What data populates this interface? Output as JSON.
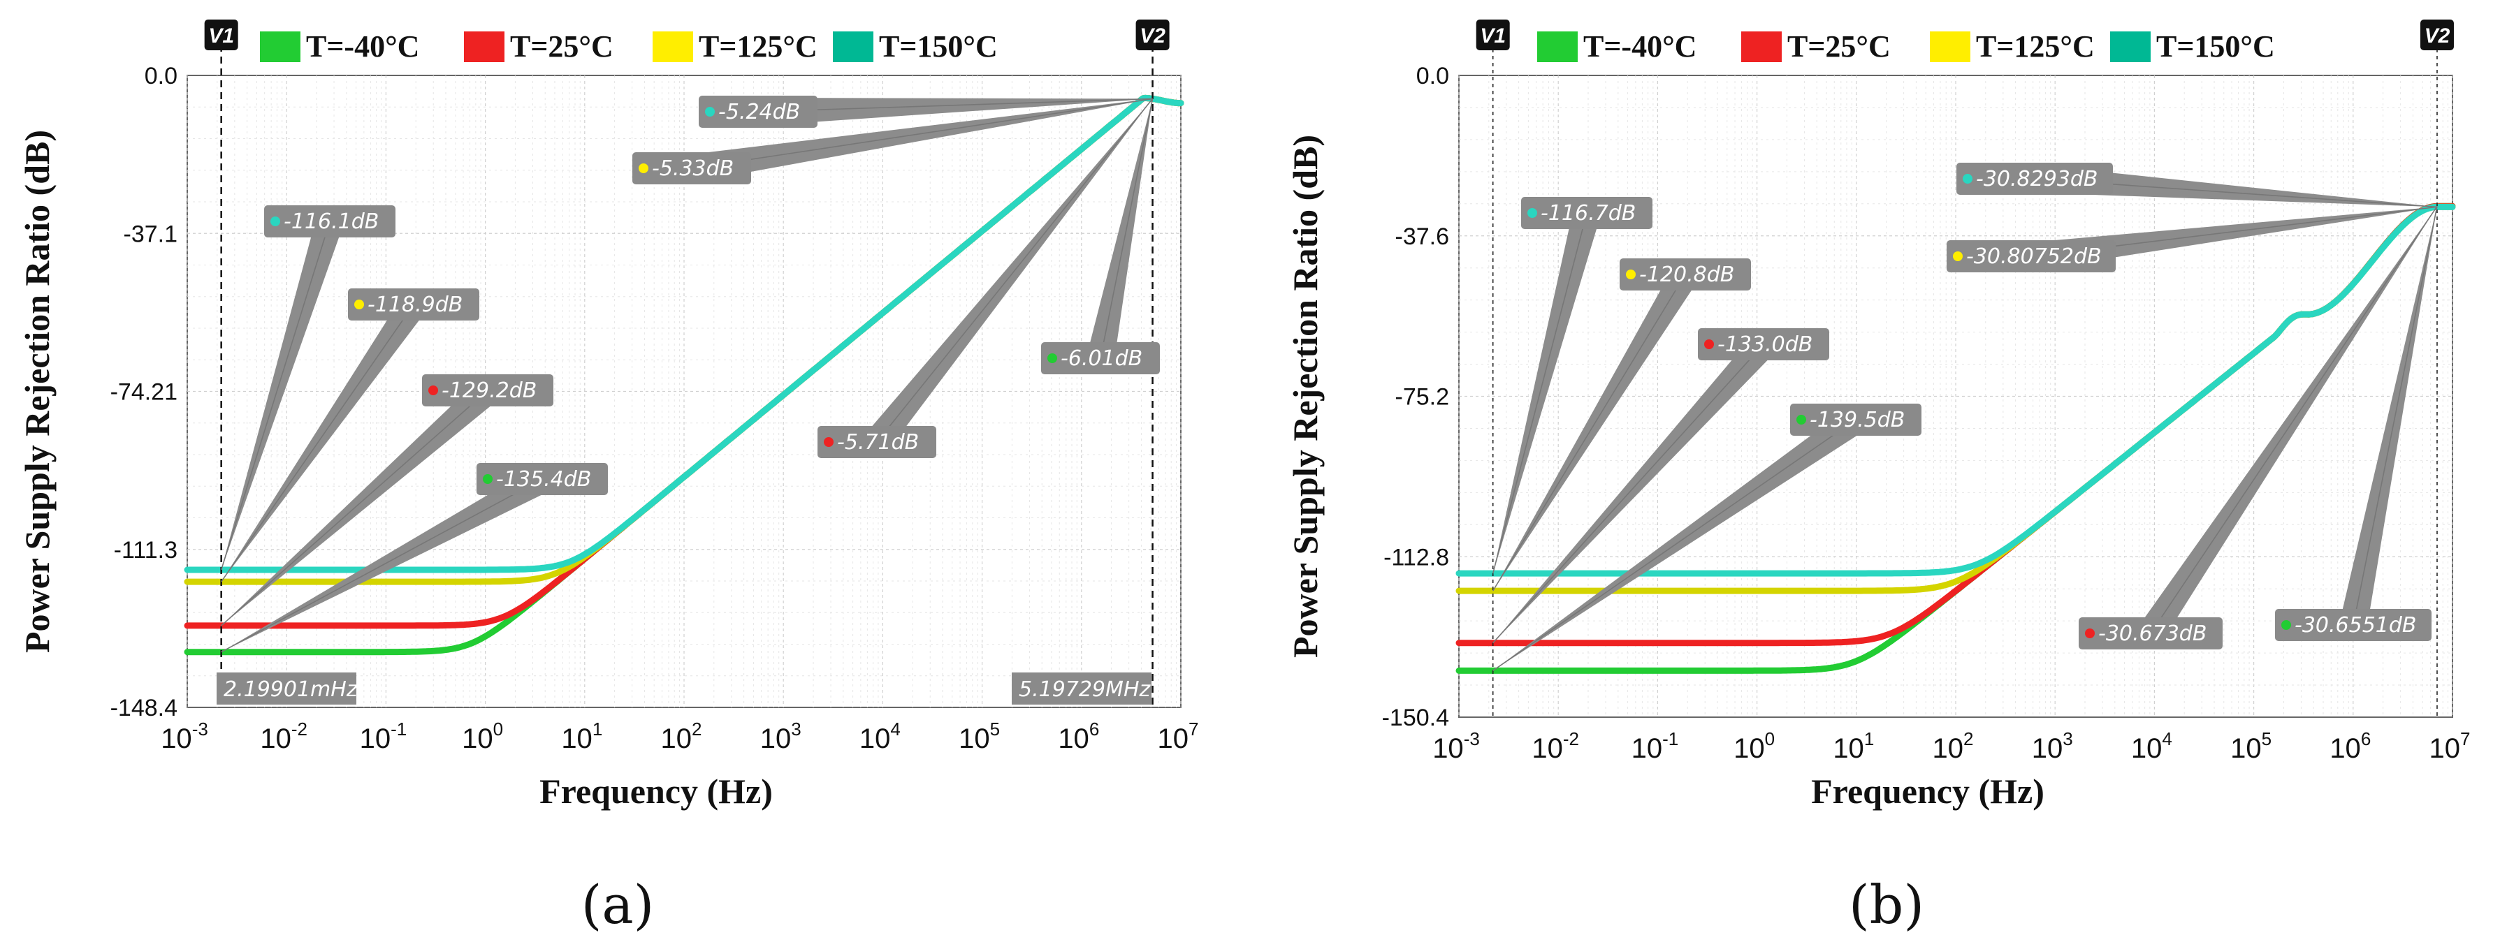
{
  "chart_data": [
    {
      "id": "a",
      "type": "line",
      "xscale": "log",
      "xlabel": "Frequency (Hz)",
      "ylabel": "Power Supply Rejection Ratio (dB)",
      "xlim": [
        0.001,
        10000000
      ],
      "ylim": [
        -148.4,
        0.0
      ],
      "yticks": [
        "0.0",
        "-37.1",
        "-74.21",
        "-111.3",
        "-148.4"
      ],
      "ytick_values": [
        0.0,
        -37.1,
        -74.21,
        -111.3,
        -148.4
      ],
      "x_tick_exponents": [
        -3,
        -2,
        -1,
        0,
        1,
        2,
        3,
        4,
        5,
        6,
        7
      ],
      "grid": true,
      "legend": [
        "T=-40°C",
        "T=25°C",
        "T=125°C",
        "T=150°C"
      ],
      "legend_colors": [
        "#22cc33",
        "#ee2222",
        "#ffee00",
        "#00b894"
      ],
      "series_colors": [
        "#22cc33",
        "#ee2222",
        "#d4d400",
        "#2ad6c0"
      ],
      "curve": {
        "corner_hz": 12,
        "peak_hz": 4200000,
        "peak_db": -5.3,
        "end_db": -6.5
      },
      "series": [
        {
          "name": "T=-40°C",
          "floor_db": -135.4,
          "mid_db": -6.01
        },
        {
          "name": "T=25°C",
          "floor_db": -129.2,
          "mid_db": -5.71
        },
        {
          "name": "T=125°C",
          "floor_db": -118.9,
          "mid_db": -5.33
        },
        {
          "name": "T=150°C",
          "floor_db": -116.1,
          "mid_db": -5.24
        }
      ],
      "cursors": [
        {
          "tag": "V1",
          "x": 0.00219901,
          "readout": "2.19901mHz"
        },
        {
          "tag": "V2",
          "x": 5197290,
          "readout": "5.19729MHz"
        }
      ],
      "annotations": [
        {
          "text": "-116.1dB",
          "series": 3,
          "cursor": 0,
          "value_db": -116.1
        },
        {
          "text": "-118.9dB",
          "series": 2,
          "cursor": 0,
          "value_db": -118.9
        },
        {
          "text": "-129.2dB",
          "series": 1,
          "cursor": 0,
          "value_db": -129.2
        },
        {
          "text": "-135.4dB",
          "series": 0,
          "cursor": 0,
          "value_db": -135.4
        },
        {
          "text": "-5.24dB",
          "series": 3,
          "cursor": 1,
          "value_db": -5.24
        },
        {
          "text": "-5.33dB",
          "series": 2,
          "cursor": 1,
          "value_db": -5.33
        },
        {
          "text": "-6.01dB",
          "series": 0,
          "cursor": 1,
          "value_db": -6.01
        },
        {
          "text": "-5.71dB",
          "series": 1,
          "cursor": 1,
          "value_db": -5.71
        }
      ],
      "sublabel": "(a)"
    },
    {
      "id": "b",
      "type": "line",
      "xscale": "log",
      "xlabel": "Frequency (Hz)",
      "ylabel": "Power Supply Rejection Ratio (dB)",
      "xlim": [
        0.001,
        10000000
      ],
      "ylim": [
        -150.4,
        0.0
      ],
      "yticks": [
        "0.0",
        "-37.6",
        "-75.2",
        "-112.8",
        "-150.4"
      ],
      "ytick_values": [
        0.0,
        -37.6,
        -75.2,
        -112.8,
        -150.4
      ],
      "x_tick_exponents": [
        -3,
        -2,
        -1,
        0,
        1,
        2,
        3,
        4,
        5,
        6,
        7
      ],
      "grid": true,
      "legend": [
        "T=-40°C",
        "T=25°C",
        "T=125°C",
        "T=150°C"
      ],
      "legend_colors": [
        "#22cc33",
        "#ee2222",
        "#ffee00",
        "#00b894"
      ],
      "series_colors": [
        "#22cc33",
        "#ee2222",
        "#d4d400",
        "#2ad6c0"
      ],
      "curve": {
        "corner_hz": 300,
        "bump_hz": 350000,
        "bump_db": -55.0,
        "end_db": -30.7
      },
      "series": [
        {
          "name": "T=-40°C",
          "floor_db": -139.5,
          "end_db": -30.6551
        },
        {
          "name": "T=25°C",
          "floor_db": -133.0,
          "end_db": -30.673
        },
        {
          "name": "T=125°C",
          "floor_db": -120.8,
          "end_db": -30.80752
        },
        {
          "name": "T=150°C",
          "floor_db": -116.7,
          "end_db": -30.8293
        }
      ],
      "cursors": [
        {
          "tag": "V1",
          "x": 0.0022
        },
        {
          "tag": "V2",
          "x": 7000000
        }
      ],
      "annotations": [
        {
          "text": "-116.7dB",
          "series": 3,
          "cursor": 0,
          "value_db": -116.7
        },
        {
          "text": "-120.8dB",
          "series": 2,
          "cursor": 0,
          "value_db": -120.8
        },
        {
          "text": "-133.0dB",
          "series": 1,
          "cursor": 0,
          "value_db": -133.0
        },
        {
          "text": "-139.5dB",
          "series": 0,
          "cursor": 0,
          "value_db": -139.5
        },
        {
          "text": "-30.8293dB",
          "series": 3,
          "cursor": 1,
          "value_db": -30.8293
        },
        {
          "text": "-30.80752dB",
          "series": 2,
          "cursor": 1,
          "value_db": -30.80752
        },
        {
          "text": "-30.673dB",
          "series": 1,
          "cursor": 1,
          "value_db": -30.673
        },
        {
          "text": "-30.6551dB",
          "series": 0,
          "cursor": 1,
          "value_db": -30.6551
        }
      ],
      "sublabel": "(b)"
    }
  ]
}
